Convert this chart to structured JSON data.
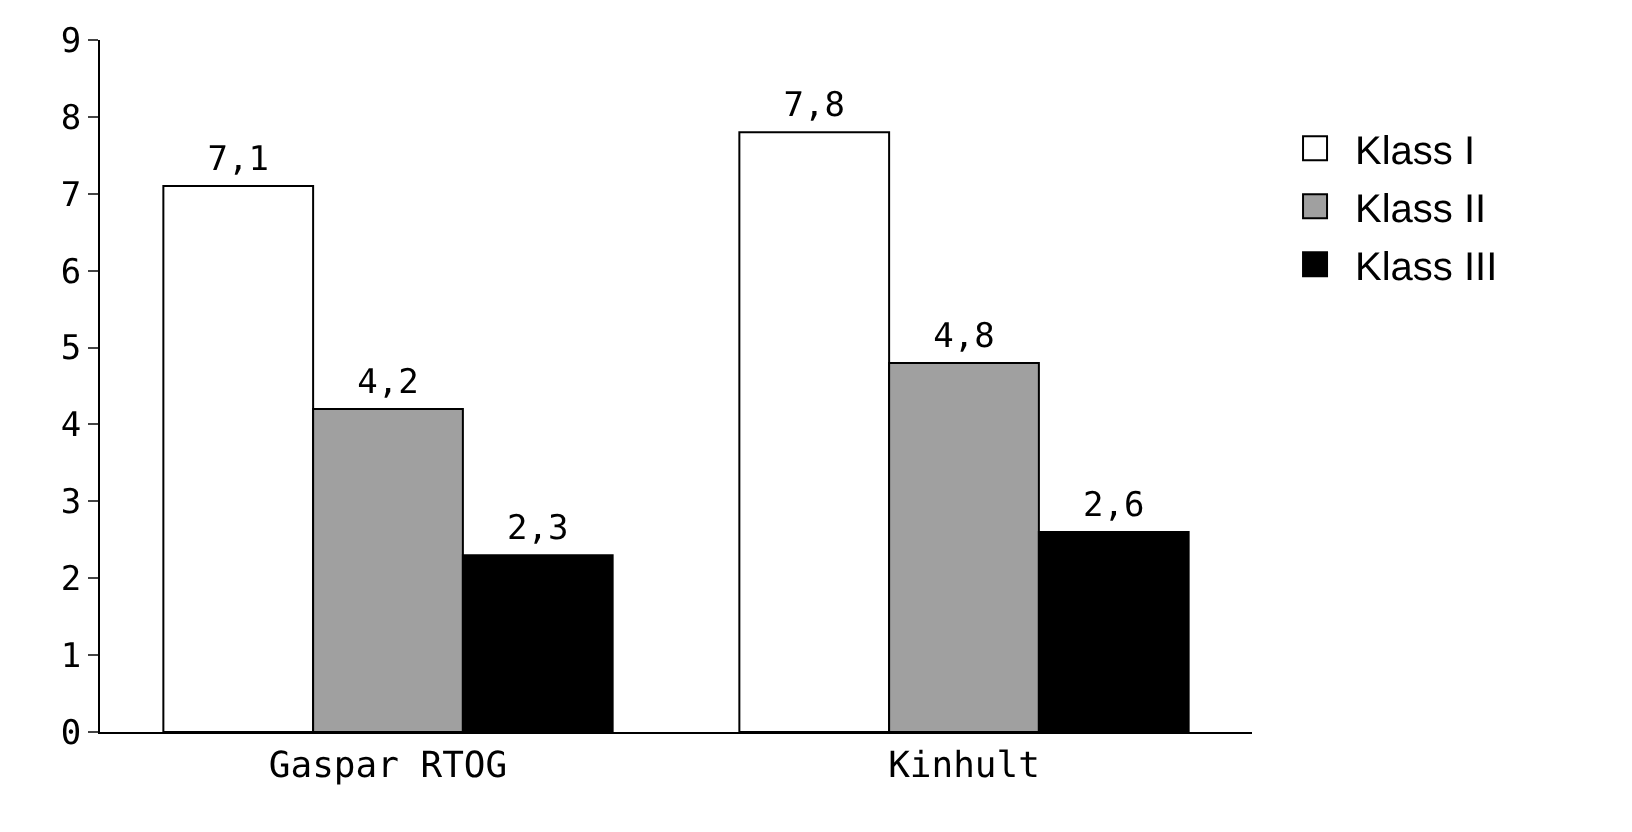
{
  "chart_data": {
    "type": "bar",
    "categories": [
      "Gaspar RTOG",
      "Kinhult"
    ],
    "series": [
      {
        "name": "Klass I",
        "color": "#ffffff",
        "values": [
          7.1,
          7.8
        ],
        "value_labels": [
          "7,1",
          "7,8"
        ]
      },
      {
        "name": "Klass II",
        "color": "#a0a0a0",
        "values": [
          4.2,
          4.8
        ],
        "value_labels": [
          "4,2",
          "4,8"
        ]
      },
      {
        "name": "Klass III",
        "color": "#000000",
        "values": [
          2.3,
          2.6
        ],
        "value_labels": [
          "2,3",
          "2,6"
        ]
      }
    ],
    "ylim": [
      0,
      9
    ],
    "yticks": [
      0,
      1,
      2,
      3,
      4,
      5,
      6,
      7,
      8,
      9
    ],
    "legend": "right"
  }
}
